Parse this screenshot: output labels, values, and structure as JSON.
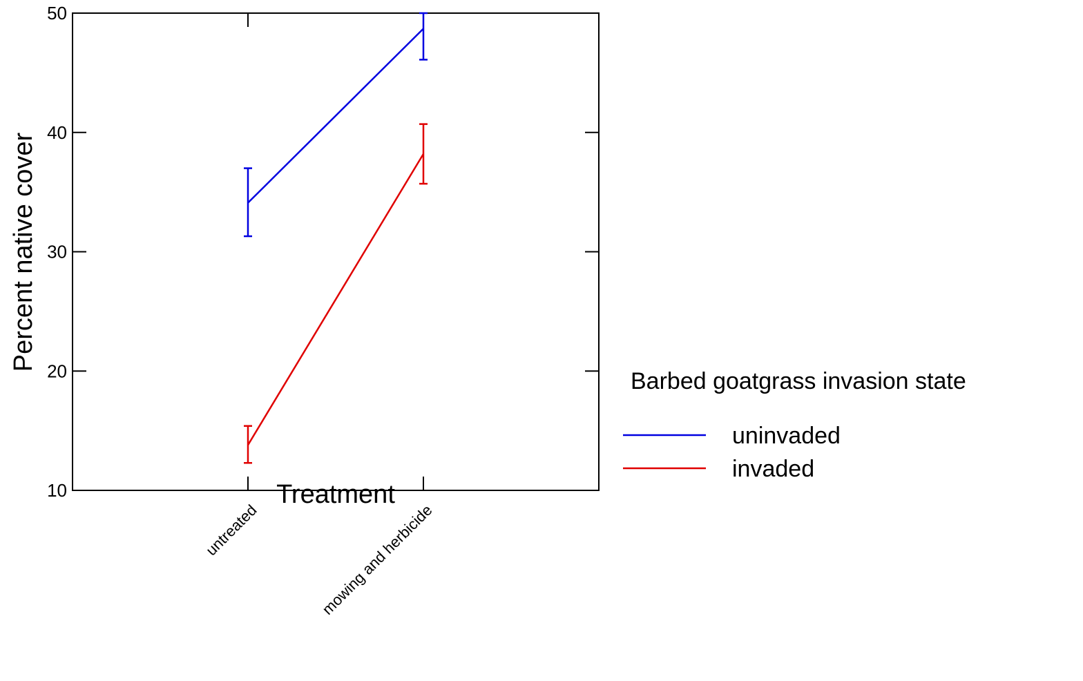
{
  "chart_data": {
    "type": "line",
    "title": "",
    "xlabel": "Treatment",
    "ylabel": "Percent native cover",
    "categories": [
      "untreated",
      "mowing and herbicide"
    ],
    "ylim": [
      10,
      50
    ],
    "yticks": [
      10,
      20,
      30,
      40,
      50
    ],
    "grid": false,
    "legend": {
      "title": "Barbed goatgrass invasion state",
      "placement": "right"
    },
    "series": [
      {
        "name": "uninvaded",
        "color": "#0000e0",
        "values": [
          34.1,
          48.7
        ],
        "lower": [
          31.3,
          46.1
        ],
        "upper": [
          37.0,
          50.0
        ]
      },
      {
        "name": "invaded",
        "color": "#e00000",
        "values": [
          13.8,
          38.2
        ],
        "lower": [
          12.3,
          35.7
        ],
        "upper": [
          15.4,
          40.7
        ]
      }
    ]
  }
}
